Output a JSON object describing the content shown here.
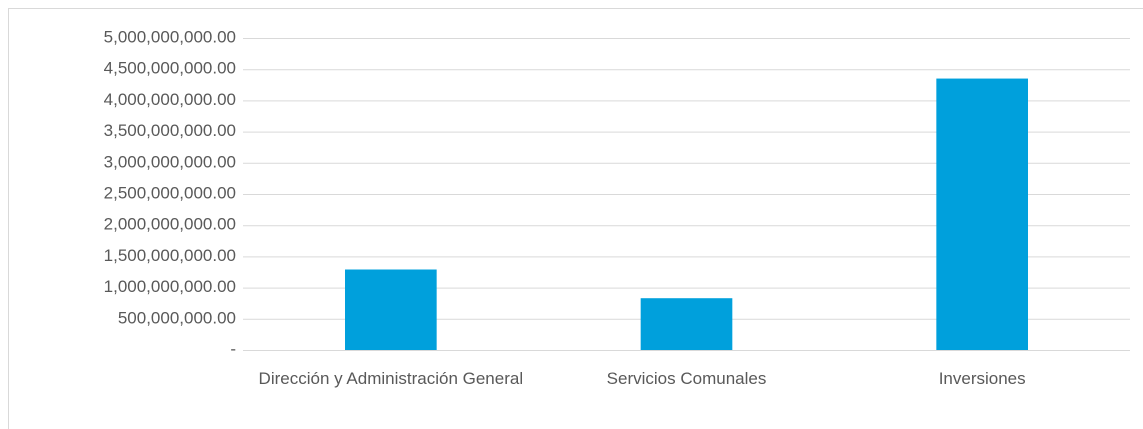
{
  "chart_data": {
    "type": "bar",
    "categories": [
      "Dirección y Administración General",
      "Servicios Comunales",
      "Inversiones"
    ],
    "values": [
      1290000000,
      830000000,
      4350000000
    ],
    "color": "#00a0dc",
    "ylim": [
      0,
      5000000000
    ],
    "yticks": [
      {
        "value": 0,
        "label": "-"
      },
      {
        "value": 500000000,
        "label": "500,000,000.00"
      },
      {
        "value": 1000000000,
        "label": "1,000,000,000.00"
      },
      {
        "value": 1500000000,
        "label": "1,500,000,000.00"
      },
      {
        "value": 2000000000,
        "label": "2,000,000,000.00"
      },
      {
        "value": 2500000000,
        "label": "2,500,000,000.00"
      },
      {
        "value": 3000000000,
        "label": "3,000,000,000.00"
      },
      {
        "value": 3500000000,
        "label": "3,500,000,000.00"
      },
      {
        "value": 4000000000,
        "label": "4,000,000,000.00"
      },
      {
        "value": 4500000000,
        "label": "4,500,000,000.00"
      },
      {
        "value": 5000000000,
        "label": "5,000,000,000.00"
      }
    ],
    "grid": true
  }
}
